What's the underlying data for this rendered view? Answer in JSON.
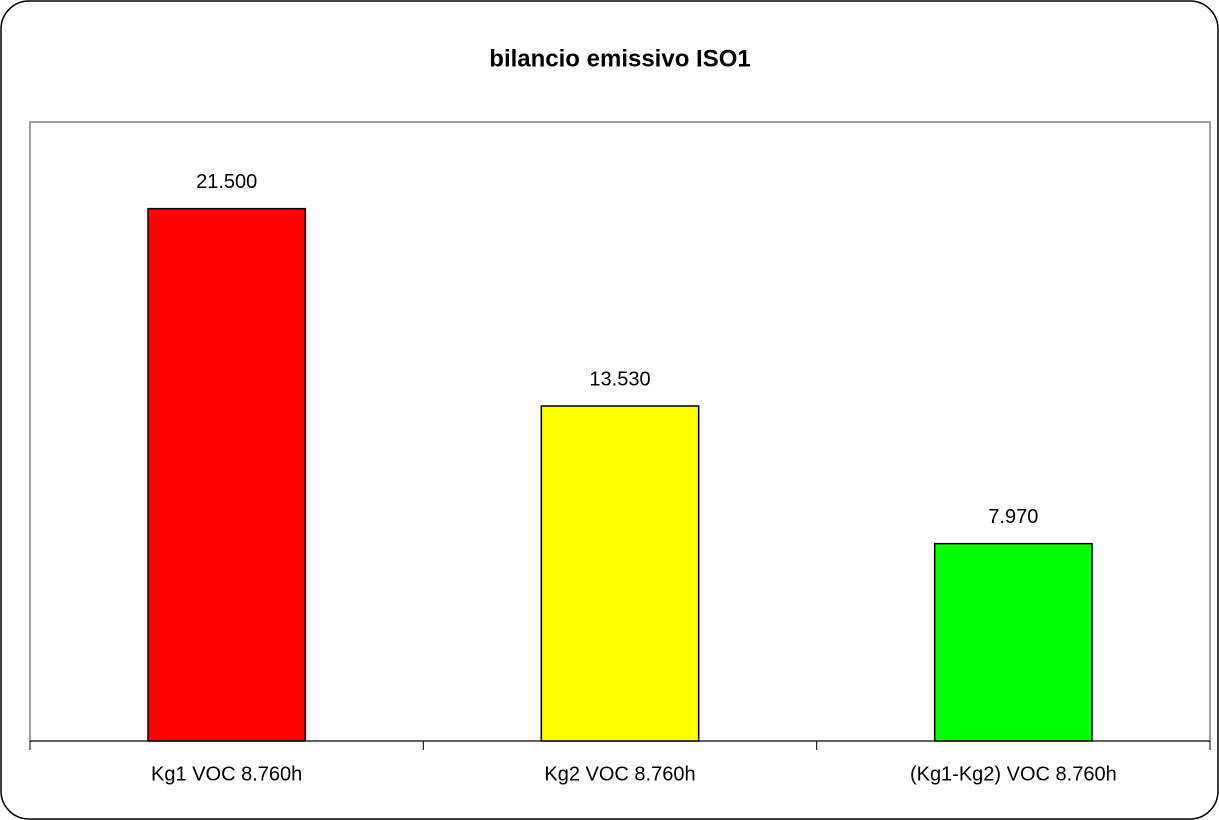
{
  "chart_data": {
    "type": "bar",
    "title": "bilancio emissivo ISO1",
    "categories": [
      "Kg1 VOC 8.760h",
      "Kg2 VOC 8.760h",
      "(Kg1-Kg2) VOC 8.760h"
    ],
    "values": [
      21500,
      13530,
      7970
    ],
    "value_labels": [
      "21.500",
      "13.530",
      "7.970"
    ],
    "colors": [
      "#ff0000",
      "#ffff00",
      "#00ff00"
    ],
    "ylim": [
      0,
      25000
    ]
  }
}
